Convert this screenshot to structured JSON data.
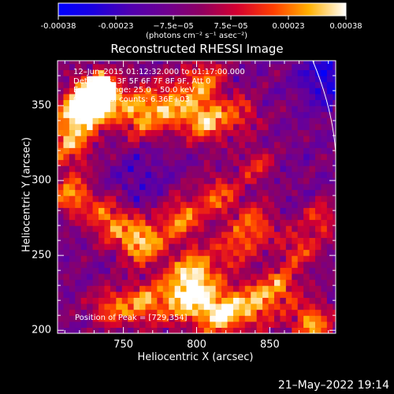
{
  "chart_data": {
    "type": "heatmap",
    "title": "Reconstructed RHESSI Image",
    "xlabel": "Heliocentric X (arcsec)",
    "ylabel": "Heliocentric Y (arcsec)",
    "xlim": [
      705,
      895
    ],
    "ylim": [
      198,
      380
    ],
    "x_ticks": [
      "750",
      "800",
      "850"
    ],
    "y_ticks": [
      "200",
      "250",
      "300",
      "350"
    ],
    "colorbar": {
      "range": [
        -0.00038,
        0.00038
      ],
      "ticks": [
        "-0.00038",
        "-0.00023",
        "−7.5e−05",
        "7.5e−05",
        "0.00023",
        "0.00038"
      ],
      "units": "(photons cm⁻² s⁻¹ asec⁻²)"
    },
    "annotations": {
      "time": "12–Jun–2015 01:12:32.000 to 01:17:00.000",
      "detectors": "Detectors: 3F 5F 6F 7F 8F 9F, Att 0",
      "energy": "Energy Range: 25.0 – 50.0 keV",
      "method": "Clean     Total counts: 6.36E+03",
      "peak": "Position of Peak = [729,354]"
    },
    "peak": {
      "x": 729,
      "y": 354
    },
    "limb_arc": [
      [
        877,
        380
      ],
      [
        895,
        301
      ]
    ],
    "hotspots": [
      {
        "x": 729,
        "y": 354,
        "amp": 1.0,
        "r": 9
      },
      {
        "x": 735,
        "y": 362,
        "amp": 0.55,
        "r": 8
      },
      {
        "x": 718,
        "y": 345,
        "amp": 0.4,
        "r": 10
      },
      {
        "x": 713,
        "y": 325,
        "amp": 0.4,
        "r": 12
      },
      {
        "x": 760,
        "y": 345,
        "amp": 0.45,
        "r": 12
      },
      {
        "x": 785,
        "y": 350,
        "amp": 0.4,
        "r": 12
      },
      {
        "x": 805,
        "y": 368,
        "amp": 0.35,
        "r": 10
      },
      {
        "x": 808,
        "y": 340,
        "amp": 0.45,
        "r": 10
      },
      {
        "x": 830,
        "y": 345,
        "amp": 0.3,
        "r": 9
      },
      {
        "x": 715,
        "y": 290,
        "amp": 0.45,
        "r": 9
      },
      {
        "x": 740,
        "y": 275,
        "amp": 0.4,
        "r": 10
      },
      {
        "x": 762,
        "y": 260,
        "amp": 0.55,
        "r": 11
      },
      {
        "x": 790,
        "y": 275,
        "amp": 0.4,
        "r": 10
      },
      {
        "x": 815,
        "y": 290,
        "amp": 0.35,
        "r": 10
      },
      {
        "x": 840,
        "y": 310,
        "amp": 0.25,
        "r": 9
      },
      {
        "x": 840,
        "y": 270,
        "amp": 0.35,
        "r": 10
      },
      {
        "x": 870,
        "y": 255,
        "amp": 0.3,
        "r": 10
      },
      {
        "x": 800,
        "y": 240,
        "amp": 0.45,
        "r": 11
      },
      {
        "x": 825,
        "y": 255,
        "amp": 0.3,
        "r": 9
      },
      {
        "x": 790,
        "y": 222,
        "amp": 0.5,
        "r": 12
      },
      {
        "x": 815,
        "y": 212,
        "amp": 0.55,
        "r": 11
      },
      {
        "x": 840,
        "y": 218,
        "amp": 0.45,
        "r": 11
      },
      {
        "x": 858,
        "y": 230,
        "amp": 0.35,
        "r": 9
      },
      {
        "x": 762,
        "y": 218,
        "amp": 0.4,
        "r": 10
      },
      {
        "x": 740,
        "y": 215,
        "amp": 0.35,
        "r": 9
      },
      {
        "x": 878,
        "y": 205,
        "amp": 0.45,
        "r": 10
      },
      {
        "x": 885,
        "y": 275,
        "amp": 0.3,
        "r": 8
      }
    ]
  }
}
